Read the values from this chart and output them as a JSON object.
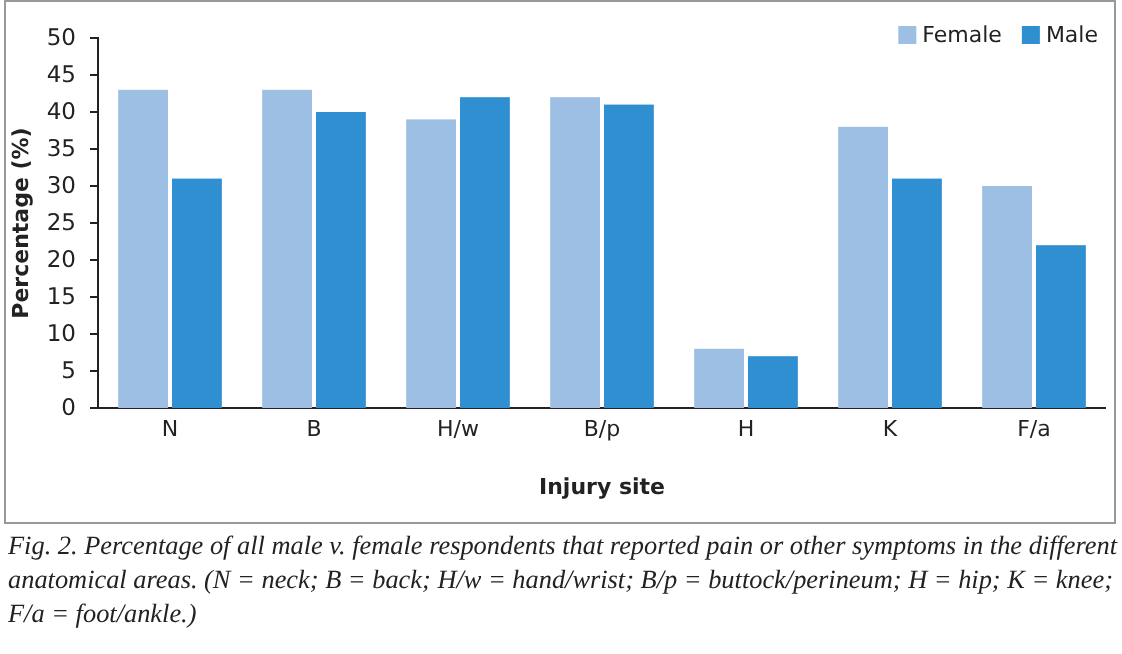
{
  "chart_data": {
    "type": "bar",
    "xlabel": "Injury site",
    "ylabel": "Percentage (%)",
    "categories": [
      "N",
      "B",
      "H/w",
      "B/p",
      "H",
      "K",
      "F/a"
    ],
    "series": [
      {
        "name": "Female",
        "color": "#9dbfe4",
        "values": [
          43,
          43,
          39,
          42,
          8,
          38,
          30
        ]
      },
      {
        "name": "Male",
        "color": "#2f8fd0",
        "values": [
          31,
          40,
          42,
          41,
          7,
          31,
          22
        ]
      }
    ],
    "ylim": [
      0,
      50
    ],
    "yticks": [
      0,
      5,
      10,
      15,
      20,
      25,
      30,
      35,
      40,
      45,
      50
    ],
    "grid": false,
    "legend": "top right",
    "annotations": [
      "Fig. 2. Percentage of all male v. female respondents that reported pain or other symptoms in the different anatomical areas. (N = neck; B = back; H/w = hand/wrist; B/p = buttock/perineum; H = hip; K = knee; F/a = foot/ankle.)"
    ]
  }
}
